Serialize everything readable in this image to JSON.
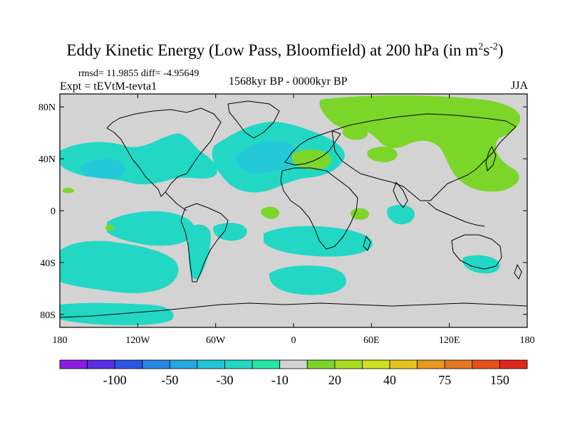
{
  "figure": {
    "title_main": "Eddy Kinetic Energy (Low Pass, Bloomfield) at 200 hPa (in m",
    "title_sup1": "2",
    "title_mid": "s",
    "title_sup2": "-2",
    "title_end": ")",
    "stats": "rmsd= 11.9855 diff= -4.95649",
    "experiment": "Expt = tEVtM-tevta1",
    "period": "1568kyr BP - 0000kyr BP",
    "season": "JJA"
  },
  "map": {
    "lon_range": [
      -180,
      180
    ],
    "lat_range": [
      -90,
      90
    ],
    "lat_ticks": [
      {
        "value": 80,
        "label": "80N"
      },
      {
        "value": 40,
        "label": "40N"
      },
      {
        "value": 0,
        "label": "0"
      },
      {
        "value": -40,
        "label": "40S"
      },
      {
        "value": -80,
        "label": "80S"
      }
    ],
    "lon_ticks": [
      {
        "value": -180,
        "label": "180"
      },
      {
        "value": -120,
        "label": "120W"
      },
      {
        "value": -60,
        "label": "60W"
      },
      {
        "value": 0,
        "label": "0"
      },
      {
        "value": 60,
        "label": "60E"
      },
      {
        "value": 120,
        "label": "120E"
      },
      {
        "value": 180,
        "label": "180"
      }
    ],
    "background_color": "#d3d3d3",
    "coastline_color": "#000000"
  },
  "colorbar": {
    "colors": [
      "#8a1ce6",
      "#5a2de6",
      "#2b55e6",
      "#2a86e6",
      "#24a8e0",
      "#21c6d6",
      "#22d8c4",
      "#24e6a6",
      "#d3d3d3",
      "#7cd62a",
      "#a8dc1e",
      "#cfe01e",
      "#e6c41e",
      "#e89a1e",
      "#e8781e",
      "#e84e1a",
      "#e0281a"
    ],
    "labels": [
      {
        "index": 2,
        "text": "-100"
      },
      {
        "index": 4,
        "text": "-50"
      },
      {
        "index": 6,
        "text": "-30"
      },
      {
        "index": 8,
        "text": "-10"
      },
      {
        "index": 10,
        "text": "20"
      },
      {
        "index": 12,
        "text": "40"
      },
      {
        "index": 14,
        "text": "75"
      },
      {
        "index": 16,
        "text": "150"
      }
    ]
  }
}
